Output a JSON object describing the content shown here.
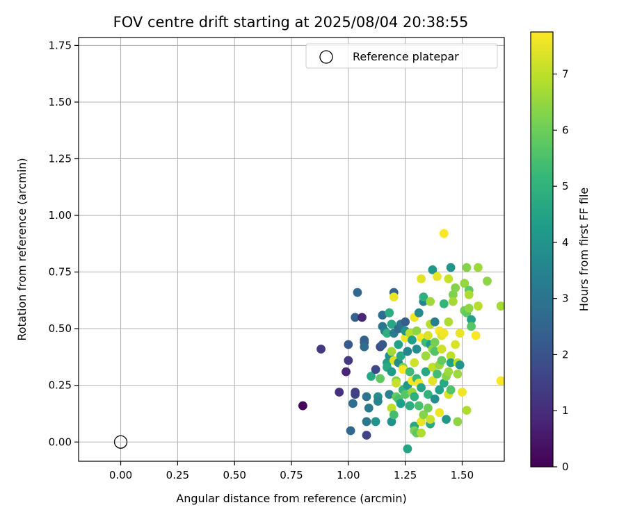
{
  "chart_data": {
    "type": "scatter",
    "title": "FOV centre drift starting at 2025/08/04 20:38:55",
    "xlabel": "Angular distance from reference (arcmin)",
    "ylabel": "Rotation from reference (arcmin)",
    "xlim": [
      -0.185,
      1.685
    ],
    "ylim": [
      -0.085,
      1.785
    ],
    "xticks": [
      "0.00",
      "0.25",
      "0.50",
      "0.75",
      "1.00",
      "1.25",
      "1.50"
    ],
    "yticks": [
      "0.00",
      "0.25",
      "0.50",
      "0.75",
      "1.00",
      "1.25",
      "1.50",
      "1.75"
    ],
    "grid": true,
    "legend": {
      "position": "top-right",
      "entries": [
        "Reference platepar"
      ]
    },
    "reference_point": {
      "x": 0.0,
      "y": 0.0
    },
    "colorbar": {
      "label": "Hours from first FF file",
      "colormap": "viridis",
      "range": [
        0,
        7.75
      ],
      "ticks": [
        "0",
        "1",
        "2",
        "3",
        "4",
        "5",
        "6",
        "7"
      ]
    },
    "points": [
      {
        "x": 0.8,
        "y": 0.16,
        "h": 0.1
      },
      {
        "x": 0.88,
        "y": 0.41,
        "h": 1.3
      },
      {
        "x": 0.96,
        "y": 0.22,
        "h": 1.1
      },
      {
        "x": 0.99,
        "y": 0.31,
        "h": 0.8
      },
      {
        "x": 1.0,
        "y": 0.36,
        "h": 1.3
      },
      {
        "x": 1.0,
        "y": 0.43,
        "h": 2.2
      },
      {
        "x": 1.01,
        "y": 0.05,
        "h": 2.6
      },
      {
        "x": 1.02,
        "y": 0.17,
        "h": 2.8
      },
      {
        "x": 1.03,
        "y": 0.21,
        "h": 1.7
      },
      {
        "x": 1.03,
        "y": 0.22,
        "h": 1.5
      },
      {
        "x": 1.03,
        "y": 0.55,
        "h": 2.4
      },
      {
        "x": 1.04,
        "y": 0.66,
        "h": 2.6
      },
      {
        "x": 1.06,
        "y": 0.55,
        "h": 0.9
      },
      {
        "x": 1.07,
        "y": 0.44,
        "h": 1.6
      },
      {
        "x": 1.07,
        "y": 0.45,
        "h": 2.4
      },
      {
        "x": 1.07,
        "y": 0.42,
        "h": 2.7
      },
      {
        "x": 1.08,
        "y": 0.09,
        "h": 3.1
      },
      {
        "x": 1.08,
        "y": 0.03,
        "h": 1.6
      },
      {
        "x": 1.08,
        "y": 0.2,
        "h": 2.9
      },
      {
        "x": 1.09,
        "y": 0.15,
        "h": 3.2
      },
      {
        "x": 1.1,
        "y": 0.29,
        "h": 4.6
      },
      {
        "x": 1.12,
        "y": 0.09,
        "h": 4.0
      },
      {
        "x": 1.12,
        "y": 0.32,
        "h": 1.7
      },
      {
        "x": 1.13,
        "y": 0.2,
        "h": 3.8
      },
      {
        "x": 1.13,
        "y": 0.18,
        "h": 3.5
      },
      {
        "x": 1.14,
        "y": 0.28,
        "h": 5.8
      },
      {
        "x": 1.14,
        "y": 0.42,
        "h": 1.8
      },
      {
        "x": 1.15,
        "y": 0.43,
        "h": 2.1
      },
      {
        "x": 1.15,
        "y": 0.51,
        "h": 3.0
      },
      {
        "x": 1.15,
        "y": 0.56,
        "h": 2.7
      },
      {
        "x": 1.16,
        "y": 0.49,
        "h": 3.3
      },
      {
        "x": 1.17,
        "y": 0.35,
        "h": 4.3
      },
      {
        "x": 1.17,
        "y": 0.33,
        "h": 4.7
      },
      {
        "x": 1.17,
        "y": 0.48,
        "h": 4.9
      },
      {
        "x": 1.18,
        "y": 0.21,
        "h": 3.4
      },
      {
        "x": 1.18,
        "y": 0.38,
        "h": 3.9
      },
      {
        "x": 1.18,
        "y": 0.57,
        "h": 4.8
      },
      {
        "x": 1.19,
        "y": 0.09,
        "h": 3.9
      },
      {
        "x": 1.19,
        "y": 0.31,
        "h": 4.2
      },
      {
        "x": 1.19,
        "y": 0.4,
        "h": 6.7
      },
      {
        "x": 1.19,
        "y": 0.52,
        "h": 4.6
      },
      {
        "x": 1.19,
        "y": 0.15,
        "h": 7.0
      },
      {
        "x": 1.2,
        "y": 0.66,
        "h": 2.4
      },
      {
        "x": 1.2,
        "y": 0.64,
        "h": 7.5
      },
      {
        "x": 1.2,
        "y": 0.36,
        "h": 7.3
      },
      {
        "x": 1.2,
        "y": 0.48,
        "h": 3.2
      },
      {
        "x": 1.2,
        "y": 0.12,
        "h": 5.4
      },
      {
        "x": 1.21,
        "y": 0.2,
        "h": 5.9
      },
      {
        "x": 1.21,
        "y": 0.27,
        "h": 6.2
      },
      {
        "x": 1.21,
        "y": 0.26,
        "h": 7.1
      },
      {
        "x": 1.22,
        "y": 0.5,
        "h": 2.7
      },
      {
        "x": 1.22,
        "y": 0.43,
        "h": 4.4
      },
      {
        "x": 1.22,
        "y": 0.35,
        "h": 3.7
      },
      {
        "x": 1.22,
        "y": 0.19,
        "h": 5.5
      },
      {
        "x": 1.23,
        "y": 0.17,
        "h": 4.3
      },
      {
        "x": 1.23,
        "y": 0.38,
        "h": 4.6
      },
      {
        "x": 1.23,
        "y": 0.52,
        "h": 3.0
      },
      {
        "x": 1.24,
        "y": 0.23,
        "h": 5.1
      },
      {
        "x": 1.24,
        "y": 0.33,
        "h": 6.1
      },
      {
        "x": 1.24,
        "y": 0.32,
        "h": 7.7
      },
      {
        "x": 1.25,
        "y": 0.46,
        "h": 7.6
      },
      {
        "x": 1.25,
        "y": 0.49,
        "h": 4.0
      },
      {
        "x": 1.25,
        "y": 0.53,
        "h": 2.3
      },
      {
        "x": 1.25,
        "y": 0.21,
        "h": 5.7
      },
      {
        "x": 1.26,
        "y": -0.03,
        "h": 4.5
      },
      {
        "x": 1.26,
        "y": 0.25,
        "h": 4.1
      },
      {
        "x": 1.26,
        "y": 0.4,
        "h": 3.6
      },
      {
        "x": 1.27,
        "y": 0.16,
        "h": 4.8
      },
      {
        "x": 1.27,
        "y": 0.31,
        "h": 5.3
      },
      {
        "x": 1.27,
        "y": 0.48,
        "h": 6.9
      },
      {
        "x": 1.28,
        "y": 0.27,
        "h": 7.7
      },
      {
        "x": 1.28,
        "y": 0.22,
        "h": 6.5
      },
      {
        "x": 1.28,
        "y": 0.45,
        "h": 4.3
      },
      {
        "x": 1.29,
        "y": 0.07,
        "h": 4.6
      },
      {
        "x": 1.29,
        "y": 0.05,
        "h": 6.2
      },
      {
        "x": 1.29,
        "y": 0.2,
        "h": 4.9
      },
      {
        "x": 1.29,
        "y": 0.35,
        "h": 7.2
      },
      {
        "x": 1.29,
        "y": 0.55,
        "h": 7.6
      },
      {
        "x": 1.3,
        "y": 0.04,
        "h": 5.8
      },
      {
        "x": 1.3,
        "y": 0.49,
        "h": 6.4
      },
      {
        "x": 1.3,
        "y": 0.41,
        "h": 3.8
      },
      {
        "x": 1.3,
        "y": 0.28,
        "h": 5.2
      },
      {
        "x": 1.31,
        "y": 0.26,
        "h": 7.6
      },
      {
        "x": 1.31,
        "y": 0.16,
        "h": 5.5
      },
      {
        "x": 1.31,
        "y": 0.57,
        "h": 3.7
      },
      {
        "x": 1.32,
        "y": 0.72,
        "h": 7.4
      },
      {
        "x": 1.32,
        "y": 0.04,
        "h": 6.8
      },
      {
        "x": 1.32,
        "y": 0.09,
        "h": 7.5
      },
      {
        "x": 1.32,
        "y": 0.46,
        "h": 7.7
      },
      {
        "x": 1.32,
        "y": 0.24,
        "h": 4.5
      },
      {
        "x": 1.33,
        "y": 0.62,
        "h": 3.5
      },
      {
        "x": 1.33,
        "y": 0.64,
        "h": 4.9
      },
      {
        "x": 1.33,
        "y": 0.12,
        "h": 6.3
      },
      {
        "x": 1.34,
        "y": 0.44,
        "h": 5.3
      },
      {
        "x": 1.34,
        "y": 0.38,
        "h": 6.6
      },
      {
        "x": 1.34,
        "y": 0.31,
        "h": 4.6
      },
      {
        "x": 1.35,
        "y": 0.15,
        "h": 6.0
      },
      {
        "x": 1.35,
        "y": 0.47,
        "h": 7.3
      },
      {
        "x": 1.35,
        "y": 0.21,
        "h": 5.0
      },
      {
        "x": 1.36,
        "y": 0.62,
        "h": 6.6
      },
      {
        "x": 1.36,
        "y": 0.43,
        "h": 4.2
      },
      {
        "x": 1.36,
        "y": 0.08,
        "h": 4.7
      },
      {
        "x": 1.36,
        "y": 0.1,
        "h": 7.1
      },
      {
        "x": 1.36,
        "y": 0.52,
        "h": 6.9
      },
      {
        "x": 1.37,
        "y": 0.76,
        "h": 4.1
      },
      {
        "x": 1.37,
        "y": 0.33,
        "h": 7.0
      },
      {
        "x": 1.37,
        "y": 0.27,
        "h": 7.4
      },
      {
        "x": 1.37,
        "y": 0.41,
        "h": 6.4
      },
      {
        "x": 1.38,
        "y": 0.53,
        "h": 3.3
      },
      {
        "x": 1.38,
        "y": 0.4,
        "h": 5.6
      },
      {
        "x": 1.38,
        "y": 0.44,
        "h": 6.1
      },
      {
        "x": 1.38,
        "y": 0.19,
        "h": 3.8
      },
      {
        "x": 1.39,
        "y": 0.73,
        "h": 7.5
      },
      {
        "x": 1.39,
        "y": 0.3,
        "h": 5.4
      },
      {
        "x": 1.4,
        "y": 0.13,
        "h": 7.6
      },
      {
        "x": 1.4,
        "y": 0.34,
        "h": 6.5
      },
      {
        "x": 1.4,
        "y": 0.49,
        "h": 7.7
      },
      {
        "x": 1.4,
        "y": 0.23,
        "h": 4.4
      },
      {
        "x": 1.41,
        "y": 0.47,
        "h": 7.4
      },
      {
        "x": 1.41,
        "y": 0.41,
        "h": 7.2
      },
      {
        "x": 1.41,
        "y": 0.36,
        "h": 5.9
      },
      {
        "x": 1.42,
        "y": 0.26,
        "h": 4.7
      },
      {
        "x": 1.42,
        "y": 0.92,
        "h": 7.7
      },
      {
        "x": 1.42,
        "y": 0.61,
        "h": 5.1
      },
      {
        "x": 1.42,
        "y": 0.48,
        "h": 7.6
      },
      {
        "x": 1.43,
        "y": 0.1,
        "h": 4.1
      },
      {
        "x": 1.43,
        "y": 0.29,
        "h": 6.3
      },
      {
        "x": 1.44,
        "y": 0.53,
        "h": 6.8
      },
      {
        "x": 1.44,
        "y": 0.72,
        "h": 7.1
      },
      {
        "x": 1.44,
        "y": 0.21,
        "h": 7.3
      },
      {
        "x": 1.44,
        "y": 0.31,
        "h": 6.6
      },
      {
        "x": 1.45,
        "y": 0.77,
        "h": 4.0
      },
      {
        "x": 1.45,
        "y": 0.38,
        "h": 7.0
      },
      {
        "x": 1.45,
        "y": 0.35,
        "h": 4.4
      },
      {
        "x": 1.45,
        "y": 0.23,
        "h": 5.6
      },
      {
        "x": 1.46,
        "y": 0.65,
        "h": 6.2
      },
      {
        "x": 1.46,
        "y": 0.62,
        "h": 6.7
      },
      {
        "x": 1.47,
        "y": 0.43,
        "h": 7.3
      },
      {
        "x": 1.47,
        "y": 0.68,
        "h": 6.3
      },
      {
        "x": 1.48,
        "y": 0.09,
        "h": 6.4
      },
      {
        "x": 1.48,
        "y": 0.35,
        "h": 6.9
      },
      {
        "x": 1.48,
        "y": 0.3,
        "h": 6.6
      },
      {
        "x": 1.49,
        "y": 0.48,
        "h": 7.5
      },
      {
        "x": 1.49,
        "y": 0.34,
        "h": 4.0
      },
      {
        "x": 1.5,
        "y": 0.22,
        "h": 7.6
      },
      {
        "x": 1.51,
        "y": 0.7,
        "h": 6.5
      },
      {
        "x": 1.51,
        "y": 0.58,
        "h": 6.1
      },
      {
        "x": 1.52,
        "y": 0.77,
        "h": 6.3
      },
      {
        "x": 1.52,
        "y": 0.14,
        "h": 6.8
      },
      {
        "x": 1.52,
        "y": 0.57,
        "h": 5.8
      },
      {
        "x": 1.53,
        "y": 0.59,
        "h": 6.4
      },
      {
        "x": 1.53,
        "y": 0.67,
        "h": 5.8
      },
      {
        "x": 1.53,
        "y": 0.65,
        "h": 6.8
      },
      {
        "x": 1.54,
        "y": 0.54,
        "h": 4.4
      },
      {
        "x": 1.54,
        "y": 0.51,
        "h": 5.7
      },
      {
        "x": 1.56,
        "y": 0.47,
        "h": 7.7
      },
      {
        "x": 1.57,
        "y": 0.6,
        "h": 6.9
      },
      {
        "x": 1.57,
        "y": 0.77,
        "h": 6.6
      },
      {
        "x": 1.61,
        "y": 0.71,
        "h": 6.4
      },
      {
        "x": 1.67,
        "y": 0.6,
        "h": 6.7
      },
      {
        "x": 1.67,
        "y": 0.27,
        "h": 7.7
      }
    ],
    "colors": {
      "axes": "#000000",
      "grid": "#b0b0b0",
      "viridis": [
        "#440154",
        "#482878",
        "#3e4989",
        "#31688e",
        "#26828e",
        "#1f9e89",
        "#35b779",
        "#6ece58",
        "#b5de2b",
        "#fde725"
      ]
    }
  }
}
